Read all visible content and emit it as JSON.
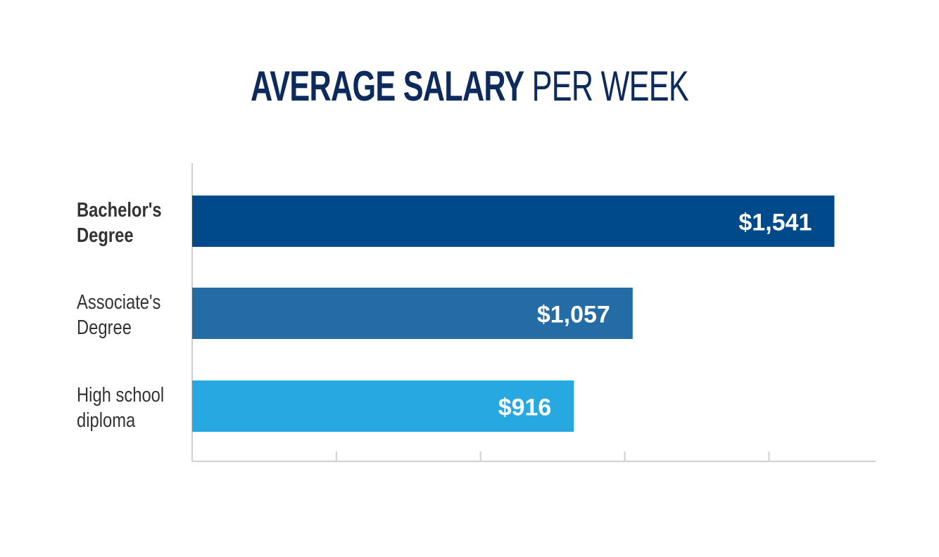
{
  "title": {
    "bold": "AVERAGE SALARY",
    "rest": "PER WEEK"
  },
  "chart_data": {
    "type": "bar",
    "orientation": "horizontal",
    "title": "AVERAGE SALARY PER WEEK",
    "categories": [
      [
        "Bachelor's",
        "Degree"
      ],
      [
        "Associate's",
        "Degree"
      ],
      [
        "High school",
        "diploma"
      ]
    ],
    "values": [
      1541,
      1057,
      916
    ],
    "value_labels": [
      "$1,541",
      "$1,057",
      "$916"
    ],
    "colors": [
      "#004a8c",
      "#236ca5",
      "#27a8e0"
    ],
    "xlim": [
      0,
      1640
    ],
    "x_ticks": [
      0,
      346,
      692,
      1038,
      1384
    ],
    "xlabel": "",
    "ylabel": "",
    "grid": false,
    "legend": "none"
  }
}
